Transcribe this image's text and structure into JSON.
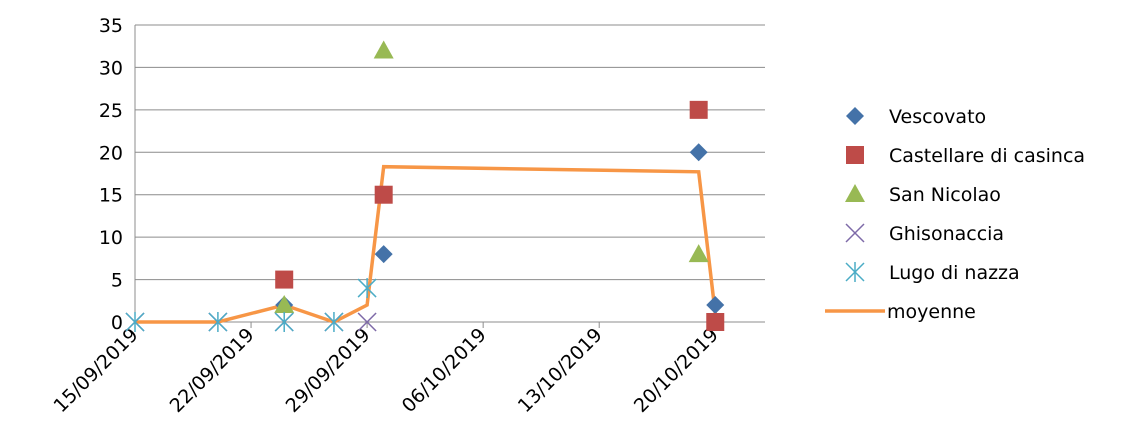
{
  "chart_data": {
    "type": "scatter",
    "x_type": "date",
    "ylim": [
      0,
      35
    ],
    "yticks": [
      "0",
      "5",
      "10",
      "15",
      "20",
      "25",
      "30",
      "35"
    ],
    "xlim": [
      "2019-09-15",
      "2019-10-23"
    ],
    "xticks": [
      {
        "date": "2019-09-15",
        "label": "15/09/2019"
      },
      {
        "date": "2019-09-22",
        "label": "22/09/2019"
      },
      {
        "date": "2019-09-29",
        "label": "29/09/2019"
      },
      {
        "date": "2019-10-06",
        "label": "06/10/2019"
      },
      {
        "date": "2019-10-13",
        "label": "13/10/2019"
      },
      {
        "date": "2019-10-20",
        "label": "20/10/2019"
      }
    ],
    "grid": "horizontal",
    "legend_position": "right",
    "series": [
      {
        "name": "Vescovato",
        "marker": "diamond",
        "color": "#4472A8",
        "points": [
          [
            "2019-09-24",
            2
          ],
          [
            "2019-09-30",
            8
          ],
          [
            "2019-10-19",
            20
          ],
          [
            "2019-10-20",
            2
          ]
        ]
      },
      {
        "name": "Castellare di casinca",
        "marker": "square",
        "color": "#BE4B48",
        "points": [
          [
            "2019-09-24",
            5
          ],
          [
            "2019-09-30",
            15
          ],
          [
            "2019-10-19",
            25
          ],
          [
            "2019-10-20",
            0
          ]
        ]
      },
      {
        "name": "San Nicolao",
        "marker": "triangle",
        "color": "#98B954",
        "points": [
          [
            "2019-09-24",
            2
          ],
          [
            "2019-09-30",
            32
          ],
          [
            "2019-10-19",
            8
          ]
        ]
      },
      {
        "name": "Ghisonaccia",
        "marker": "x",
        "color": "#7E6AA8",
        "points": [
          [
            "2019-09-15",
            0
          ],
          [
            "2019-09-20",
            0
          ],
          [
            "2019-09-24",
            0
          ],
          [
            "2019-09-27",
            0
          ],
          [
            "2019-09-29",
            0
          ]
        ]
      },
      {
        "name": "Lugo di nazza",
        "marker": "asterisk",
        "color": "#4BACC6",
        "points": [
          [
            "2019-09-15",
            0
          ],
          [
            "2019-09-20",
            0
          ],
          [
            "2019-09-24",
            0
          ],
          [
            "2019-09-27",
            0
          ],
          [
            "2019-09-29",
            4
          ]
        ]
      },
      {
        "name": "moyenne",
        "marker": "line",
        "color": "#F79646",
        "points": [
          [
            "2019-09-15",
            0
          ],
          [
            "2019-09-20",
            0
          ],
          [
            "2019-09-24",
            2
          ],
          [
            "2019-09-27",
            0
          ],
          [
            "2019-09-29",
            2
          ],
          [
            "2019-09-30",
            18.3
          ],
          [
            "2019-10-19",
            17.7
          ],
          [
            "2019-10-20",
            1
          ]
        ]
      }
    ]
  }
}
